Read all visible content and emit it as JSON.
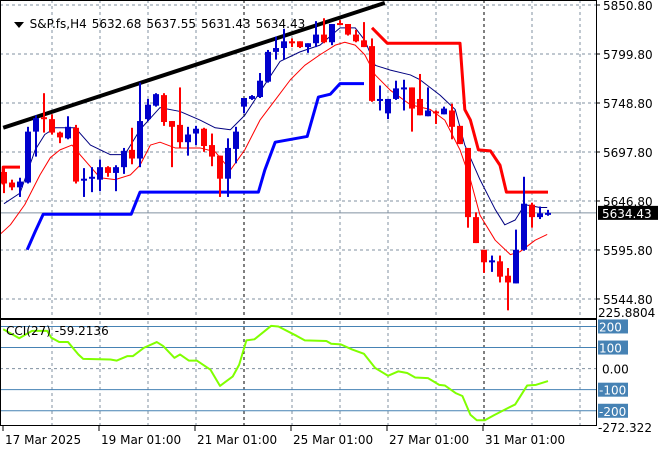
{
  "header": {
    "symbol": "S&P.fs,H4",
    "open": "5632.68",
    "high": "5637.55",
    "low": "5631.43",
    "close": "5634.43"
  },
  "price_axis": {
    "labels": [
      "5850.80",
      "5799.80",
      "5748.80",
      "5697.80",
      "5646.80",
      "5595.80",
      "5544.80"
    ],
    "current_price": "5634.43"
  },
  "time_axis": {
    "labels": [
      "17 Mar 2025",
      "19 Mar 01:00",
      "21 Mar 01:00",
      "25 Mar 01:00",
      "27 Mar 01:00",
      "31 Mar 01:00"
    ]
  },
  "cci": {
    "label": "CCI(27) -59.2136",
    "max_label": "225.8804",
    "min_label": "-272.322",
    "zero_label": "0.00",
    "level_labels": [
      "200",
      "100",
      "-100",
      "-200"
    ]
  },
  "colors": {
    "bull": "#0000cc",
    "bear": "#ff0000",
    "ma_fast": "#000080",
    "ma_slow": "#ff0000",
    "stop_up": "#0000ff",
    "stop_down": "#ff0000",
    "cci": "#80ff00",
    "level": "#4682b4",
    "trend": "#000000"
  },
  "chart_data": [
    {
      "type": "candlestick",
      "title": "S&P.fs,H4",
      "ylim": [
        5525,
        5856
      ],
      "x_tick_labels": [
        "17 Mar 2025",
        "19 Mar 01:00",
        "21 Mar 01:00",
        "25 Mar 01:00",
        "27 Mar 01:00",
        "31 Mar 01:00"
      ],
      "x_tick_indices": [
        0,
        12,
        24,
        36,
        48,
        60
      ],
      "y_ticks": [
        5850.8,
        5799.8,
        5748.8,
        5697.8,
        5646.8,
        5595.8,
        5544.8
      ],
      "current_price": 5634.43,
      "ohlc": [
        [
          5677,
          5682,
          5655,
          5665
        ],
        [
          5666,
          5669,
          5658,
          5661
        ],
        [
          5661,
          5671,
          5651,
          5667
        ],
        [
          5666,
          5724,
          5665,
          5719
        ],
        [
          5719,
          5736,
          5693,
          5733
        ],
        [
          5734,
          5759,
          5718,
          5732
        ],
        [
          5732,
          5737,
          5716,
          5718
        ],
        [
          5718,
          5719,
          5707,
          5713
        ],
        [
          5712,
          5735,
          5711,
          5724
        ],
        [
          5723,
          5726,
          5665,
          5667
        ],
        [
          5668,
          5681,
          5651,
          5670
        ],
        [
          5670,
          5682,
          5656,
          5672
        ],
        [
          5669,
          5690,
          5657,
          5682
        ],
        [
          5682,
          5683,
          5672,
          5676
        ],
        [
          5676,
          5684,
          5657,
          5682
        ],
        [
          5682,
          5702,
          5675,
          5699
        ],
        [
          5700,
          5723,
          5685,
          5691
        ],
        [
          5691,
          5770,
          5682,
          5730
        ],
        [
          5732,
          5753,
          5730,
          5747
        ],
        [
          5746,
          5759,
          5745,
          5758
        ],
        [
          5757,
          5759,
          5725,
          5729
        ],
        [
          5730,
          5730,
          5682,
          5724
        ],
        [
          5726,
          5765,
          5702,
          5708
        ],
        [
          5708,
          5724,
          5694,
          5716
        ],
        [
          5717,
          5725,
          5705,
          5722
        ],
        [
          5722,
          5723,
          5698,
          5704
        ],
        [
          5705,
          5717,
          5683,
          5693
        ],
        [
          5694,
          5694,
          5651,
          5670
        ],
        [
          5670,
          5712,
          5651,
          5702
        ],
        [
          5701,
          5724,
          5686,
          5719
        ],
        [
          5745,
          5754,
          5738,
          5754
        ],
        [
          5753,
          5757,
          5752,
          5756
        ],
        [
          5755,
          5780,
          5754,
          5772
        ],
        [
          5771,
          5804,
          5770,
          5802
        ],
        [
          5802,
          5818,
          5794,
          5806
        ],
        [
          5806,
          5826,
          5794,
          5813
        ],
        [
          5813,
          5816,
          5807,
          5812
        ],
        [
          5813,
          5813,
          5806,
          5807
        ],
        [
          5807,
          5811,
          5801,
          5811
        ],
        [
          5811,
          5834,
          5807,
          5820
        ],
        [
          5820,
          5837,
          5811,
          5812
        ],
        [
          5812,
          5831,
          5809,
          5831
        ],
        [
          5832,
          5835,
          5830,
          5830
        ],
        [
          5831,
          5831,
          5819,
          5820
        ],
        [
          5820,
          5825,
          5812,
          5813
        ],
        [
          5814,
          5833,
          5807,
          5807
        ],
        [
          5808,
          5816,
          5750,
          5751
        ],
        [
          5752,
          5767,
          5741,
          5753
        ],
        [
          5738,
          5753,
          5732,
          5753
        ],
        [
          5753,
          5772,
          5752,
          5764
        ],
        [
          5763,
          5773,
          5741,
          5765
        ],
        [
          5765,
          5765,
          5719,
          5743
        ],
        [
          5753,
          5779,
          5736,
          5736
        ],
        [
          5735,
          5765,
          5735,
          5741
        ],
        [
          5740,
          5741,
          5727,
          5738
        ],
        [
          5737,
          5745,
          5737,
          5743
        ],
        [
          5741,
          5748,
          5711,
          5724
        ],
        [
          5725,
          5725,
          5706,
          5706
        ],
        [
          5702,
          5702,
          5619,
          5630
        ],
        [
          5630,
          5635,
          5603,
          5603
        ],
        [
          5596,
          5596,
          5572,
          5583
        ],
        [
          5583,
          5590,
          5573,
          5585
        ],
        [
          5584,
          5590,
          5562,
          5568
        ],
        [
          5569,
          5577,
          5533,
          5562
        ],
        [
          5561,
          5617,
          5561,
          5596
        ],
        [
          5596,
          5672,
          5595,
          5644
        ],
        [
          5643,
          5645,
          5619,
          5630
        ],
        [
          5630,
          5641,
          5628,
          5634
        ],
        [
          5632.68,
          5637.55,
          5631.43,
          5634.43
        ]
      ],
      "lines": {
        "ma_fast": [
          [
            0,
            5644
          ],
          [
            2,
            5655
          ],
          [
            3.9,
            5700
          ],
          [
            5.1,
            5716
          ],
          [
            6.4,
            5723
          ],
          [
            8.9,
            5723
          ],
          [
            10.8,
            5705
          ],
          [
            13.3,
            5695
          ],
          [
            15.1,
            5695
          ],
          [
            17,
            5721
          ],
          [
            19.5,
            5744
          ],
          [
            22,
            5740
          ],
          [
            24.5,
            5731
          ],
          [
            26.4,
            5723
          ],
          [
            28.3,
            5721
          ],
          [
            30.1,
            5736
          ],
          [
            32.6,
            5768
          ],
          [
            34.5,
            5792
          ],
          [
            37,
            5802
          ],
          [
            39.5,
            5809
          ],
          [
            42,
            5827
          ],
          [
            43.9,
            5827
          ],
          [
            45.1,
            5814
          ],
          [
            46.4,
            5788
          ],
          [
            48.3,
            5783
          ],
          [
            50.8,
            5778
          ],
          [
            52,
            5773
          ],
          [
            54.5,
            5757
          ],
          [
            56.4,
            5742
          ],
          [
            57.6,
            5705
          ],
          [
            59.5,
            5669
          ],
          [
            61.4,
            5638
          ],
          [
            62.6,
            5622
          ],
          [
            63.9,
            5627
          ],
          [
            65.1,
            5643
          ],
          [
            67,
            5640
          ],
          [
            67.9,
            5640
          ]
        ],
        "ma_slow": [
          [
            -0.5,
            5612
          ],
          [
            0.8,
            5622
          ],
          [
            2.6,
            5643
          ],
          [
            4.5,
            5674
          ],
          [
            5.8,
            5692
          ],
          [
            7,
            5700
          ],
          [
            8.5,
            5705
          ],
          [
            9.5,
            5695
          ],
          [
            12,
            5671
          ],
          [
            13.9,
            5669
          ],
          [
            15.8,
            5674
          ],
          [
            17,
            5684
          ],
          [
            18.3,
            5705
          ],
          [
            19.5,
            5708
          ],
          [
            21.4,
            5702
          ],
          [
            24.5,
            5702
          ],
          [
            26.4,
            5698
          ],
          [
            28.3,
            5679
          ],
          [
            30.1,
            5700
          ],
          [
            32,
            5731
          ],
          [
            33.9,
            5752
          ],
          [
            35.8,
            5773
          ],
          [
            37.6,
            5788
          ],
          [
            39.5,
            5799
          ],
          [
            41.4,
            5809
          ],
          [
            42.6,
            5812
          ],
          [
            43.9,
            5809
          ],
          [
            45.1,
            5799
          ],
          [
            46.4,
            5778
          ],
          [
            48.3,
            5762
          ],
          [
            50.8,
            5747
          ],
          [
            53.3,
            5742
          ],
          [
            55.1,
            5731
          ],
          [
            57,
            5700
          ],
          [
            58.3,
            5669
          ],
          [
            59.5,
            5632
          ],
          [
            61.4,
            5606
          ],
          [
            63.3,
            5591
          ],
          [
            64.5,
            5594
          ],
          [
            66.4,
            5606
          ],
          [
            67.9,
            5612
          ]
        ],
        "stop_down_1": [
          [
            -0.1,
            5664
          ],
          [
            -0.1,
            5682
          ],
          [
            2,
            5682
          ]
        ],
        "stop_down_2": [
          [
            46,
            5827
          ],
          [
            47.9,
            5811
          ],
          [
            57,
            5811
          ],
          [
            57.6,
            5742
          ],
          [
            58.3,
            5731
          ],
          [
            59.3,
            5700
          ],
          [
            60.8,
            5699
          ],
          [
            62,
            5684
          ],
          [
            62.8,
            5656
          ],
          [
            68,
            5656
          ]
        ],
        "stop_up": [
          [
            2.9,
            5596
          ],
          [
            3.9,
            5615
          ],
          [
            4.9,
            5633
          ],
          [
            15.9,
            5633
          ],
          [
            17,
            5656
          ],
          [
            31.8,
            5656
          ],
          [
            32.6,
            5679
          ],
          [
            33.9,
            5708
          ],
          [
            37.9,
            5714
          ],
          [
            39.3,
            5755
          ],
          [
            40.8,
            5758
          ],
          [
            42,
            5769
          ],
          [
            45,
            5769
          ]
        ],
        "trendline": [
          [
            -0.1,
            5723
          ],
          [
            47.6,
            5853
          ]
        ]
      }
    },
    {
      "type": "line",
      "title": "CCI(27)",
      "ylim": [
        -272.322,
        225.8804
      ],
      "levels": [
        200,
        100,
        0,
        -100,
        -200
      ],
      "last_value": -59.2136,
      "points": [
        [
          -0.1,
          187
        ],
        [
          1.9,
          144
        ],
        [
          3.5,
          179
        ],
        [
          5.4,
          179
        ],
        [
          5.9,
          147
        ],
        [
          6.9,
          126
        ],
        [
          8,
          126
        ],
        [
          9.3,
          67
        ],
        [
          9.9,
          46
        ],
        [
          13.3,
          43
        ],
        [
          14.1,
          38
        ],
        [
          15.4,
          59
        ],
        [
          16.1,
          59
        ],
        [
          17.5,
          99
        ],
        [
          19.1,
          126
        ],
        [
          19.9,
          107
        ],
        [
          21.3,
          51
        ],
        [
          22,
          67
        ],
        [
          23.1,
          38
        ],
        [
          24.1,
          38
        ],
        [
          25.8,
          -5
        ],
        [
          27,
          -82
        ],
        [
          28.6,
          -37
        ],
        [
          29.4,
          19
        ],
        [
          30.3,
          134
        ],
        [
          31.3,
          139
        ],
        [
          33.4,
          203
        ],
        [
          34.3,
          200
        ],
        [
          36.6,
          155
        ],
        [
          37.6,
          134
        ],
        [
          40.3,
          131
        ],
        [
          40.9,
          118
        ],
        [
          42.1,
          115
        ],
        [
          43.5,
          91
        ],
        [
          45,
          70
        ],
        [
          46.4,
          3
        ],
        [
          48,
          -34
        ],
        [
          49.3,
          -13
        ],
        [
          50.4,
          -21
        ],
        [
          51.4,
          -42
        ],
        [
          53,
          -45
        ],
        [
          54.4,
          -77
        ],
        [
          55.1,
          -80
        ],
        [
          56.5,
          -117
        ],
        [
          57.3,
          -130
        ],
        [
          58.3,
          -219
        ],
        [
          59.1,
          -245
        ],
        [
          60.1,
          -245
        ],
        [
          61.3,
          -220
        ],
        [
          63,
          -187
        ],
        [
          63.9,
          -170
        ],
        [
          65.4,
          -80
        ],
        [
          66.5,
          -77
        ],
        [
          68,
          -59.2
        ]
      ]
    }
  ]
}
